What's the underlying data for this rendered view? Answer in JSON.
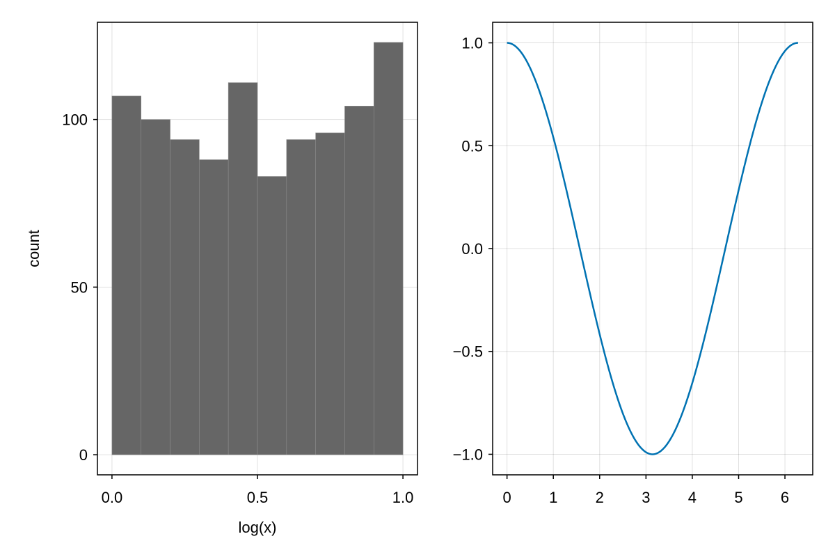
{
  "chart_data": [
    {
      "type": "bar",
      "kind": "histogram",
      "xlabel": "log(x)",
      "ylabel": "count",
      "xlim": [
        -0.05,
        1.05
      ],
      "ylim": [
        -6,
        129
      ],
      "xticks": [
        0.0,
        0.5,
        1.0
      ],
      "xtick_labels": [
        "0.0",
        "0.5",
        "1.0"
      ],
      "yticks": [
        0,
        50,
        100
      ],
      "ytick_labels": [
        "0",
        "50",
        "100"
      ],
      "grid": true,
      "bin_edges": [
        0.0,
        0.1,
        0.2,
        0.3,
        0.4,
        0.5,
        0.6,
        0.7,
        0.8,
        0.9,
        1.0
      ],
      "values": [
        107,
        100,
        94,
        88,
        111,
        83,
        94,
        96,
        104,
        123
      ],
      "color": "#666666"
    },
    {
      "type": "line",
      "xlabel": "",
      "ylabel": "",
      "xlim": [
        -0.31,
        6.6
      ],
      "ylim": [
        -1.1,
        1.1
      ],
      "xticks": [
        0,
        1,
        2,
        3,
        4,
        5,
        6
      ],
      "xtick_labels": [
        "0",
        "1",
        "2",
        "3",
        "4",
        "5",
        "6"
      ],
      "yticks": [
        -1.0,
        -0.5,
        0.0,
        0.5,
        1.0
      ],
      "ytick_labels": [
        "−1.0",
        "−0.5",
        "0.0",
        "0.5",
        "1.0"
      ],
      "grid": true,
      "series": [
        {
          "function": "cos(x)",
          "color": "#0072b2",
          "x": [
            0.0,
            0.2618,
            0.5236,
            0.7854,
            1.0472,
            1.309,
            1.5708,
            1.8326,
            2.0944,
            2.3562,
            2.618,
            2.8798,
            3.1416,
            3.4034,
            3.6652,
            3.927,
            4.1888,
            4.4506,
            4.7124,
            4.9742,
            5.236,
            5.4978,
            5.7596,
            6.0214,
            6.2832
          ],
          "y": [
            1.0,
            0.9659,
            0.866,
            0.7071,
            0.5,
            0.2588,
            0.0,
            -0.2588,
            -0.5,
            -0.7071,
            -0.866,
            -0.9659,
            -1.0,
            -0.9659,
            -0.866,
            -0.7071,
            -0.5,
            -0.2588,
            0.0,
            0.2588,
            0.5,
            0.7071,
            0.866,
            0.9659,
            1.0
          ]
        }
      ]
    }
  ]
}
